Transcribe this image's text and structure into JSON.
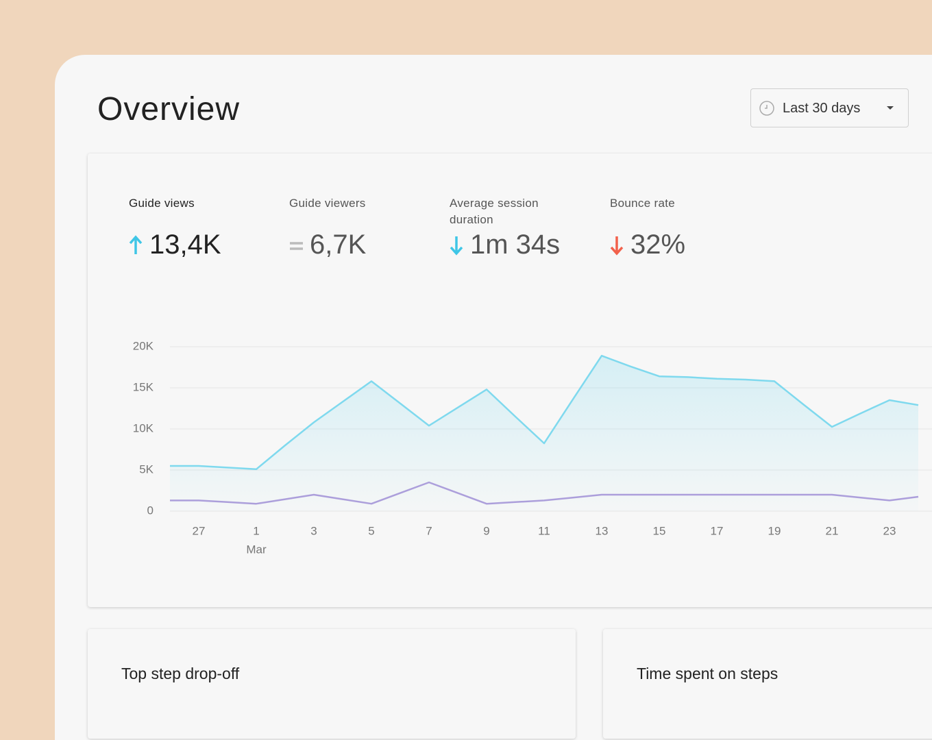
{
  "header": {
    "title": "Overview",
    "date_range": "Last 30 days"
  },
  "metrics": [
    {
      "label": "Guide views",
      "value": "13,4K"
    },
    {
      "label": "Guide viewers",
      "value": "6,7K"
    },
    {
      "label": "Average session duration",
      "value": "1m 34s"
    },
    {
      "label": "Bounce rate",
      "value": "32%"
    }
  ],
  "chart_data": {
    "type": "line",
    "categories": [
      null,
      "27",
      null,
      "1",
      null,
      "3",
      null,
      "5",
      null,
      "7",
      null,
      "9",
      null,
      "11",
      null,
      "13",
      null,
      "15",
      null,
      "17",
      null,
      "19",
      null,
      "21",
      null,
      "23",
      null
    ],
    "x_sublabels": [
      null,
      null,
      null,
      "Mar",
      null,
      null,
      null,
      null,
      null,
      null,
      null,
      null,
      null,
      null,
      null,
      null,
      null,
      null,
      null,
      null,
      null,
      null,
      null,
      null,
      null,
      null,
      null
    ],
    "series": [
      {
        "color": "#7fd9ee",
        "values": [
          5500,
          5500,
          5300,
          5100,
          8000,
          10800,
          13300,
          15800,
          13100,
          10400,
          12600,
          14800,
          11500,
          8250,
          13600,
          18900,
          17600,
          16400,
          16300,
          16100,
          16000,
          15800,
          13000,
          10250,
          11900,
          13500,
          12900
        ]
      },
      {
        "color": "#ac9fdb",
        "values": [
          1300,
          1300,
          1100,
          900,
          1450,
          2000,
          1450,
          900,
          2200,
          3500,
          2200,
          900,
          1100,
          1300,
          1650,
          2000,
          2000,
          2000,
          2000,
          2000,
          2000,
          2000,
          2000,
          2000,
          1650,
          1300,
          1750
        ]
      }
    ],
    "ylim": [
      0,
      20000
    ],
    "yticks": [
      0,
      {
        "value": 5000,
        "label": "5K"
      },
      {
        "value": 10000,
        "label": "10K"
      },
      {
        "value": 15000,
        "label": "15K"
      },
      {
        "value": 20000,
        "label": "20K"
      }
    ],
    "grid": true
  },
  "cards": [
    {
      "title": "Top step drop-off"
    },
    {
      "title": "Time spent on steps"
    }
  ]
}
